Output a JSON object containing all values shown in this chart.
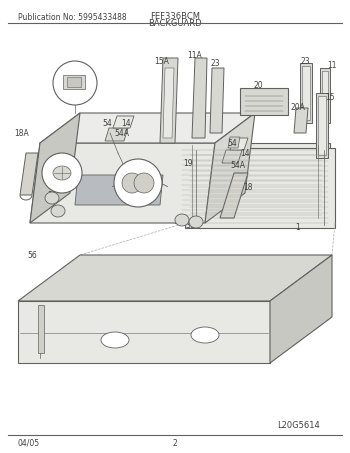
{
  "title_left": "Publication No: 5995433488",
  "title_center": "FEF336BCM",
  "section_title": "BACKGUARD",
  "footer_left": "04/05",
  "footer_center": "2",
  "footer_right": "L20G5614",
  "bg_color": "#ffffff",
  "line_color": "#606060",
  "fill_light": "#e8e8e4",
  "fill_mid": "#d8d8d2",
  "fill_dark": "#c8c8c2",
  "text_color": "#404040"
}
